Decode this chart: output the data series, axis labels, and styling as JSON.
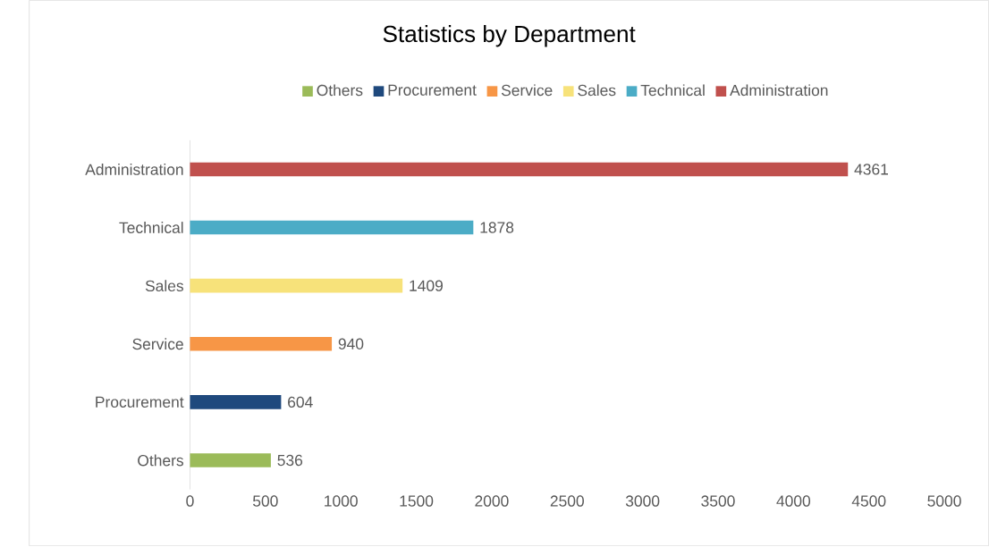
{
  "chart_data": {
    "type": "bar",
    "orientation": "horizontal",
    "title": "Statistics by Department",
    "categories": [
      "Administration",
      "Technical",
      "Sales",
      "Service",
      "Procurement",
      "Others"
    ],
    "series": [
      {
        "name": "Others",
        "color": "#9bbb59",
        "values": [
          null,
          null,
          null,
          null,
          null,
          536
        ]
      },
      {
        "name": "Procurement",
        "color": "#1f497d",
        "values": [
          null,
          null,
          null,
          null,
          604,
          null
        ]
      },
      {
        "name": "Service",
        "color": "#f79646",
        "values": [
          null,
          null,
          null,
          940,
          null,
          null
        ]
      },
      {
        "name": "Sales",
        "color": "#f7e27a",
        "values": [
          null,
          null,
          1409,
          null,
          null,
          null
        ]
      },
      {
        "name": "Technical",
        "color": "#4bacc6",
        "values": [
          null,
          1878,
          null,
          null,
          null,
          null
        ]
      },
      {
        "name": "Administration",
        "color": "#c0504d",
        "values": [
          4361,
          null,
          null,
          null,
          null,
          null
        ]
      }
    ],
    "xlim": [
      0,
      5000
    ],
    "xticks": [
      0,
      500,
      1000,
      1500,
      2000,
      2500,
      3000,
      3500,
      4000,
      4500,
      5000
    ],
    "data_labels": true,
    "legend": "top"
  }
}
